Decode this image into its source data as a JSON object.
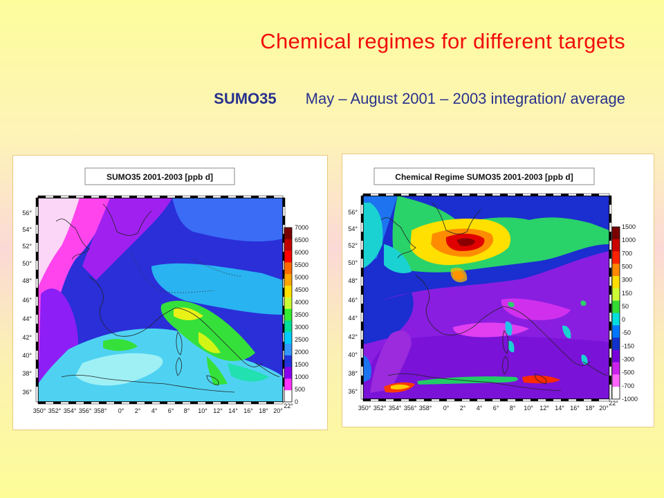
{
  "slide": {
    "title": "Chemical regimes for different targets",
    "subtitle_model": "SUMO35",
    "subtitle_period": "May – August 2001 – 2003 integration/ average"
  },
  "maps": [
    {
      "title": "SUMO35    2001-2003    [ppb d]",
      "lon_labels": [
        "350°",
        "352°",
        "354°",
        "356°",
        "358°",
        "0°",
        "2°",
        "4°",
        "6°",
        "8°",
        "10°",
        "12°",
        "14°",
        "16°",
        "18°",
        "20°",
        "22°"
      ],
      "lat_labels": [
        "56°",
        "54°",
        "52°",
        "50°",
        "48°",
        "46°",
        "44°",
        "42°",
        "40°",
        "38°",
        "36°"
      ],
      "colorbar": {
        "labels": [
          "7000",
          "6500",
          "6000",
          "5500",
          "5000",
          "4500",
          "4000",
          "3500",
          "3000",
          "2500",
          "2000",
          "1500",
          "1000",
          "500",
          "0"
        ],
        "colors": [
          "#7a0000",
          "#c00000",
          "#ff0000",
          "#ff6a00",
          "#ffa500",
          "#ffe000",
          "#ccff33",
          "#33ee33",
          "#00dd99",
          "#00ccff",
          "#3399ff",
          "#2233dd",
          "#8800ee",
          "#ff33ff",
          "#ffffff"
        ]
      }
    },
    {
      "title": "Chemical Regime SUMO35 2001-2003 [ppb d]",
      "lon_labels": [
        "350°",
        "352°",
        "354°",
        "356°",
        "358°",
        "0°",
        "2°",
        "4°",
        "6°",
        "8°",
        "10°",
        "12°",
        "14°",
        "16°",
        "18°",
        "20°",
        "22°"
      ],
      "lat_labels": [
        "56°",
        "54°",
        "52°",
        "50°",
        "48°",
        "46°",
        "44°",
        "42°",
        "40°",
        "38°",
        "36°"
      ],
      "colorbar": {
        "labels": [
          "1500",
          "1000",
          "700",
          "500",
          "300",
          "150",
          "50",
          "0",
          "-50",
          "-150",
          "-300",
          "-500",
          "-700",
          "-1000"
        ],
        "colors": [
          "#7a0000",
          "#cc0000",
          "#ff2200",
          "#ff8800",
          "#ffdd00",
          "#ccff33",
          "#33dd33",
          "#00dddd",
          "#0077ff",
          "#1133cc",
          "#7700dd",
          "#cc22ee",
          "#ff66ff",
          "#ffffff"
        ]
      }
    }
  ]
}
